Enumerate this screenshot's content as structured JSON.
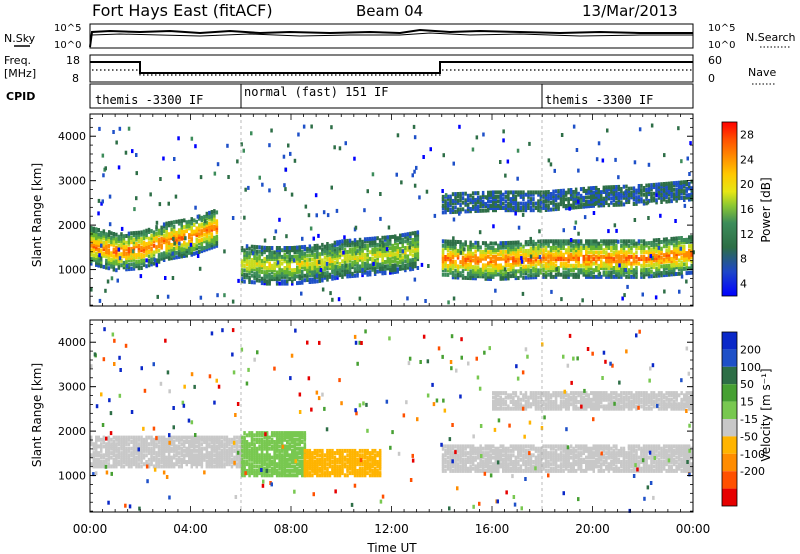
{
  "header": {
    "title": "Fort Hays East (fitACF)",
    "beam": "Beam 04",
    "date": "13/Mar/2013"
  },
  "top_panels": {
    "nsky_label": "N.Sky",
    "nsearch_label": "N.Search",
    "nsky_ticks": [
      "10^5",
      "10^0"
    ],
    "nsearch_ticks": [
      "10^5",
      "10^0"
    ],
    "freq_label_1": "Freq.",
    "freq_label_2": "[MHz]",
    "freq_ticks": [
      "18",
      "8"
    ],
    "nave_label": "Nave",
    "nave_ticks": [
      "60",
      "0"
    ],
    "cpid_label": "CPID",
    "cpid_segments": [
      {
        "label": "themis -3300 IF",
        "start_h": 0,
        "end_h": 6
      },
      {
        "label": "normal (fast) 151 IF",
        "start_h": 6,
        "end_h": 18
      },
      {
        "label": "themis -3300 IF",
        "start_h": 18,
        "end_h": 24
      }
    ]
  },
  "chart_data": [
    {
      "type": "heatmap",
      "title": "Power",
      "xlabel": "Time UT",
      "ylabel": "Slant Range [km]",
      "xlim": [
        0,
        24
      ],
      "ylim": [
        180,
        4500
      ],
      "x_ticks": [
        "00:00",
        "04:00",
        "08:00",
        "12:00",
        "16:00",
        "20:00",
        "00:00"
      ],
      "y_ticks": [
        1000,
        2000,
        3000,
        4000
      ],
      "colorbar": {
        "label": "Power [dB]",
        "ticks": [
          "4",
          "8",
          "12",
          "16",
          "20",
          "24",
          "28"
        ],
        "colors": [
          "#0000ff",
          "#1e50c8",
          "#2d6e46",
          "#3c8c5a",
          "#64b432",
          "#c8dc1e",
          "#ffc800",
          "#ff8c00",
          "#ff5000",
          "#ff0000"
        ]
      },
      "bands": [
        {
          "x": [
            0.0,
            1.0,
            2.0,
            3.0,
            4.0,
            5.0
          ],
          "range_km": [
            1600,
            1450,
            1500,
            1700,
            1800,
            2000
          ],
          "value": "high"
        },
        {
          "x": [
            6.0,
            7.0,
            8.0,
            9.0,
            10.0,
            11.0,
            12.0,
            13.0
          ],
          "range_km": [
            1200,
            1150,
            1150,
            1200,
            1300,
            1350,
            1400,
            1500
          ],
          "value": "mid"
        },
        {
          "x": [
            14.0,
            16.0,
            18.0,
            20.0,
            22.0,
            24.0
          ],
          "range_km": [
            1300,
            1250,
            1300,
            1300,
            1300,
            1400
          ],
          "value": "high"
        },
        {
          "x": [
            14.0,
            16.0,
            18.0,
            20.0,
            22.0,
            24.0
          ],
          "range_km": [
            2550,
            2600,
            2600,
            2700,
            2750,
            2850
          ],
          "value": "low"
        }
      ]
    },
    {
      "type": "heatmap",
      "title": "Velocity",
      "xlabel": "Time UT",
      "ylabel": "Slant Range [km]",
      "xlim": [
        0,
        24
      ],
      "ylim": [
        180,
        4500
      ],
      "x_ticks": [
        "00:00",
        "04:00",
        "08:00",
        "12:00",
        "16:00",
        "20:00",
        "00:00"
      ],
      "y_ticks": [
        1000,
        2000,
        3000,
        4000
      ],
      "colorbar": {
        "label": "Velocity [m s⁻¹]",
        "ticks": [
          "200",
          "100",
          "50",
          "15",
          "-15",
          "-50",
          "-100",
          "-200"
        ],
        "colors": [
          "#0a28c8",
          "#1e50c8",
          "#2d6e46",
          "#46a032",
          "#78c850",
          "#c8c8c8",
          "#ffb400",
          "#ff8c00",
          "#ff5000",
          "#e60000"
        ]
      },
      "regions": [
        {
          "x": [
            0.0,
            6.0
          ],
          "range_km": [
            1250,
            1900
          ],
          "value": "gray"
        },
        {
          "x": [
            6.0,
            8.5
          ],
          "range_km": [
            1050,
            2000
          ],
          "value": "green"
        },
        {
          "x": [
            8.5,
            11.5
          ],
          "range_km": [
            1050,
            1600
          ],
          "value": "orange"
        },
        {
          "x": [
            14.0,
            24.0
          ],
          "range_km": [
            1150,
            1700
          ],
          "value": "gray"
        },
        {
          "x": [
            16.0,
            24.0
          ],
          "range_km": [
            2550,
            2900
          ],
          "value": "gray"
        }
      ]
    }
  ]
}
